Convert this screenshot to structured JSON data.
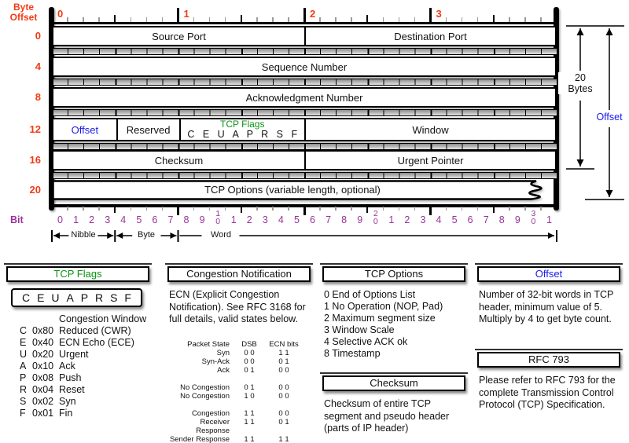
{
  "colors": {
    "red": "#f33b14",
    "blue": "#1a1aee",
    "green": "#089610",
    "purple": "#993399",
    "black": "#111111"
  },
  "header": {
    "byte_offset_label": [
      "Byte",
      "Offset"
    ],
    "byte_numbers": [
      "0",
      "1",
      "2",
      "3"
    ],
    "bit_axis_label": "Bit",
    "rows": [
      {
        "offset": "0",
        "cells": [
          {
            "label": "Source Port",
            "bits": 16
          },
          {
            "label": "Destination Port",
            "bits": 16
          }
        ]
      },
      {
        "offset": "4",
        "cells": [
          {
            "label": "Sequence Number",
            "bits": 32
          }
        ]
      },
      {
        "offset": "8",
        "cells": [
          {
            "label": "Acknowledgment Number",
            "bits": 32
          }
        ]
      },
      {
        "offset": "12",
        "cells": [
          {
            "label": "Offset",
            "bits": 4,
            "color": "blue"
          },
          {
            "label": "Reserved",
            "bits": 4
          },
          {
            "label": "TCP Flags",
            "bits": 8,
            "color": "green",
            "sub": "C E U A P R S F"
          },
          {
            "label": "Window",
            "bits": 16
          }
        ]
      },
      {
        "offset": "16",
        "cells": [
          {
            "label": "Checksum",
            "bits": 16
          },
          {
            "label": "Urgent Pointer",
            "bits": 16
          }
        ]
      },
      {
        "offset": "20",
        "cells": [
          {
            "label": "TCP Options (variable length, optional)",
            "bits": 32
          }
        ],
        "torn": true
      }
    ],
    "bit_count": 32,
    "scale_markers": [
      "Nibble",
      "Byte",
      "Word"
    ],
    "size_arrow_label": [
      "20",
      "Bytes"
    ],
    "offset_arrow_label": "Offset"
  },
  "legend": {
    "tcp_flags": {
      "title": "TCP Flags",
      "flag_letters": [
        "C",
        "E",
        "U",
        "A",
        "P",
        "R",
        "S",
        "F"
      ],
      "list_header": "Congestion Window",
      "items": [
        {
          "letter": "C",
          "hex": "0x80",
          "desc": "Reduced (CWR)"
        },
        {
          "letter": "E",
          "hex": "0x40",
          "desc": "ECN Echo (ECE)"
        },
        {
          "letter": "U",
          "hex": "0x20",
          "desc": "Urgent"
        },
        {
          "letter": "A",
          "hex": "0x10",
          "desc": "Ack"
        },
        {
          "letter": "P",
          "hex": "0x08",
          "desc": "Push"
        },
        {
          "letter": "R",
          "hex": "0x04",
          "desc": "Reset"
        },
        {
          "letter": "S",
          "hex": "0x02",
          "desc": "Syn"
        },
        {
          "letter": "F",
          "hex": "0x01",
          "desc": "Fin"
        }
      ]
    },
    "congestion": {
      "title": "Congestion Notification",
      "body": "ECN (Explicit Congestion Notification).  See RFC 3168 for full details, valid states below.",
      "table": {
        "header": [
          "Packet State",
          "DSB",
          "ECN bits"
        ],
        "groups": [
          [
            [
              "Syn",
              "0 0",
              "1 1"
            ],
            [
              "Syn-Ack",
              "0 0",
              "0 1"
            ],
            [
              "Ack",
              "0 1",
              "0 0"
            ]
          ],
          [
            [
              "No Congestion",
              "0 1",
              "0 0"
            ],
            [
              "No Congestion",
              "1 0",
              "0 0"
            ]
          ],
          [
            [
              "Congestion",
              "1 1",
              "0 0"
            ],
            [
              "Receiver Response",
              "1 1",
              "0 1"
            ],
            [
              "Sender Response",
              "1 1",
              "1 1"
            ]
          ]
        ]
      }
    },
    "tcp_options": {
      "title": "TCP Options",
      "items": [
        "0 End of Options List",
        "1 No Operation (NOP, Pad)",
        "2 Maximum segment size",
        "3 Window Scale",
        "4 Selective ACK ok",
        "8 Timestamp"
      ]
    },
    "offset": {
      "title": "Offset",
      "body": "Number of 32-bit words in TCP header, minimum value of 5.  Multiply by 4 to get byte count."
    },
    "checksum": {
      "title": "Checksum",
      "body": "Checksum of entire TCP segment and pseudo header (parts of IP header)"
    },
    "rfc": {
      "title": "RFC 793",
      "body": "Please refer to RFC 793 for the complete Transmission Control Protocol (TCP) Specification."
    }
  }
}
